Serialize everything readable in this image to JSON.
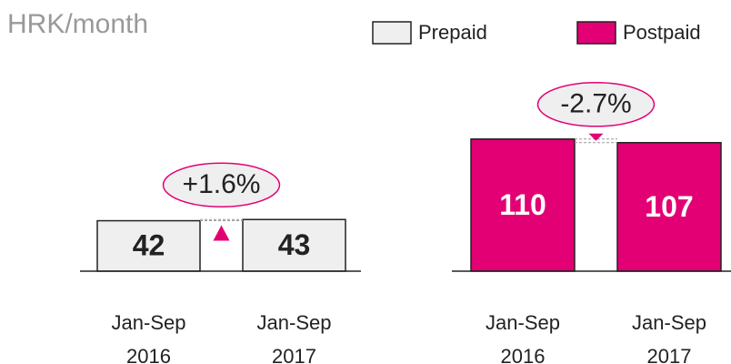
{
  "title": "HRK/month",
  "chart_data": [
    {
      "type": "bar",
      "categories": [
        "Jan-Sep 2016",
        "Jan-Sep 2017"
      ],
      "series": [
        {
          "name": "Prepaid",
          "color": "#efefef",
          "values": [
            42,
            43
          ]
        }
      ],
      "change": "+1.6%"
    },
    {
      "type": "bar",
      "categories": [
        "Jan-Sep 2016",
        "Jan-Sep 2017"
      ],
      "series": [
        {
          "name": "Postpaid",
          "color": "#e20074",
          "values": [
            110,
            107
          ]
        }
      ],
      "change": "-2.7%"
    }
  ]
}
